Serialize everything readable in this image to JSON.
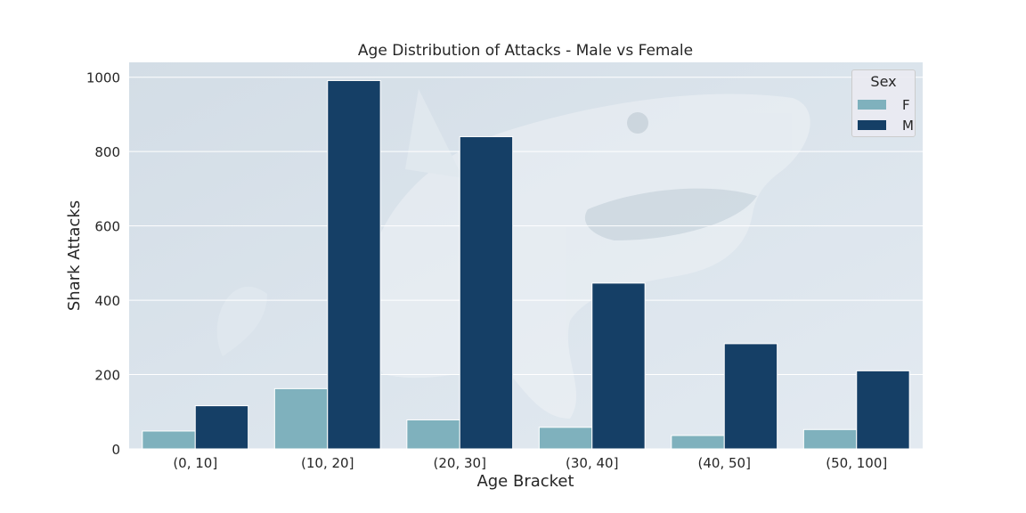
{
  "chart_data": {
    "type": "bar",
    "title": "Age Distribution of Attacks - Male vs Female",
    "xlabel": "Age Bracket",
    "ylabel": "Shark Attacks",
    "categories": [
      "(0, 10]",
      "(10, 20]",
      "(20, 30]",
      "(30, 40]",
      "(40, 50]",
      "(50, 100]"
    ],
    "series": [
      {
        "name": "F",
        "color": "#7fb1bd",
        "values": [
          48,
          162,
          78,
          58,
          36,
          52
        ]
      },
      {
        "name": "M",
        "color": "#153f66",
        "values": [
          116,
          991,
          840,
          446,
          283,
          210
        ]
      }
    ],
    "ylim": [
      0,
      1040
    ],
    "yticks": [
      0,
      200,
      400,
      600,
      800,
      1000
    ],
    "grid": true,
    "legend": {
      "title": "Sex",
      "placement": "top-right"
    }
  }
}
